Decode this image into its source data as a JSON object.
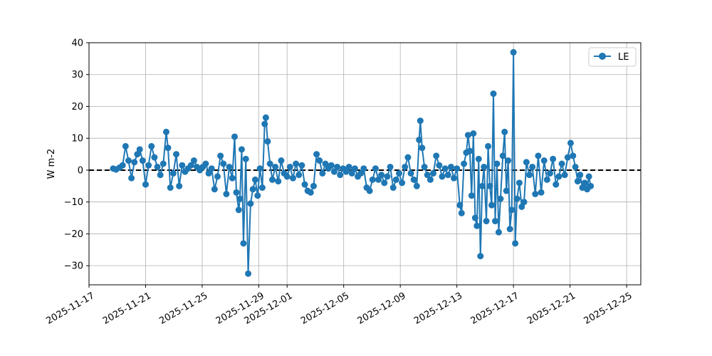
{
  "chart_data": {
    "type": "line",
    "title": "",
    "xlabel": "",
    "ylabel": "W m-2",
    "xlim": [
      "2025-11-17",
      "2025-12-26"
    ],
    "ylim": [
      -36,
      40
    ],
    "grid": true,
    "legend_location": "upper right",
    "x_ticks": [
      "2025-11-17",
      "2025-11-21",
      "2025-11-25",
      "2025-11-29",
      "2025-12-01",
      "2025-12-05",
      "2025-12-09",
      "2025-12-13",
      "2025-12-17",
      "2025-12-21",
      "2025-12-25"
    ],
    "y_ticks": [
      -30,
      -20,
      -10,
      0,
      10,
      20,
      30,
      40
    ],
    "reference_line": {
      "y": 0,
      "style": "dashed",
      "color": "#000000"
    },
    "series": [
      {
        "name": "LE",
        "color": "#1f77b4",
        "marker": "circle",
        "points": [
          [
            "2025-11-18T17:00",
            0.5
          ],
          [
            "2025-11-18T22:00",
            0.2
          ],
          [
            "2025-11-19T04:00",
            0.8
          ],
          [
            "2025-11-19T09:00",
            1.5
          ],
          [
            "2025-11-19T14:00",
            7.5
          ],
          [
            "2025-11-19T19:00",
            3.0
          ],
          [
            "2025-11-20T00:00",
            -2.5
          ],
          [
            "2025-11-20T05:00",
            2.5
          ],
          [
            "2025-11-20T10:00",
            5.0
          ],
          [
            "2025-11-20T14:00",
            6.5
          ],
          [
            "2025-11-20T19:00",
            3.0
          ],
          [
            "2025-11-21T00:00",
            -4.5
          ],
          [
            "2025-11-21T05:00",
            1.5
          ],
          [
            "2025-11-21T10:00",
            7.5
          ],
          [
            "2025-11-21T15:00",
            4.0
          ],
          [
            "2025-11-21T20:00",
            1.0
          ],
          [
            "2025-11-22T01:00",
            -1.5
          ],
          [
            "2025-11-22T06:00",
            2.0
          ],
          [
            "2025-11-22T11:00",
            12.0
          ],
          [
            "2025-11-22T14:00",
            7.0
          ],
          [
            "2025-11-22T18:00",
            -5.5
          ],
          [
            "2025-11-22T23:00",
            -1.0
          ],
          [
            "2025-11-23T04:00",
            5.0
          ],
          [
            "2025-11-23T09:00",
            -5.0
          ],
          [
            "2025-11-23T14:00",
            1.5
          ],
          [
            "2025-11-23T19:00",
            -0.5
          ],
          [
            "2025-11-24T00:00",
            0.5
          ],
          [
            "2025-11-24T05:00",
            1.5
          ],
          [
            "2025-11-24T10:00",
            3.0
          ],
          [
            "2025-11-24T15:00",
            1.0
          ],
          [
            "2025-11-24T20:00",
            0.0
          ],
          [
            "2025-11-25T01:00",
            1.0
          ],
          [
            "2025-11-25T06:00",
            2.0
          ],
          [
            "2025-11-25T11:00",
            -1.0
          ],
          [
            "2025-11-25T16:00",
            0.5
          ],
          [
            "2025-11-25T21:00",
            -6.0
          ],
          [
            "2025-11-26T02:00",
            -2.0
          ],
          [
            "2025-11-26T07:00",
            4.5
          ],
          [
            "2025-11-26T12:00",
            2.0
          ],
          [
            "2025-11-26T17:00",
            -7.5
          ],
          [
            "2025-11-26T22:00",
            1.0
          ],
          [
            "2025-11-27T03:00",
            -2.5
          ],
          [
            "2025-11-27T07:00",
            10.5
          ],
          [
            "2025-11-27T10:00",
            -7.0
          ],
          [
            "2025-11-27T14:00",
            -12.5
          ],
          [
            "2025-11-27T16:00",
            -9.0
          ],
          [
            "2025-11-27T19:00",
            6.5
          ],
          [
            "2025-11-27T22:00",
            -23.0
          ],
          [
            "2025-11-28T02:00",
            3.5
          ],
          [
            "2025-11-28T06:00",
            -32.5
          ],
          [
            "2025-11-28T10:00",
            -10.5
          ],
          [
            "2025-11-28T14:00",
            -6.0
          ],
          [
            "2025-11-28T18:00",
            -3.0
          ],
          [
            "2025-11-28T22:00",
            -8.0
          ],
          [
            "2025-11-29T02:00",
            0.5
          ],
          [
            "2025-11-29T06:00",
            -5.5
          ],
          [
            "2025-11-29T10:00",
            14.5
          ],
          [
            "2025-11-29T12:00",
            16.5
          ],
          [
            "2025-11-29T15:00",
            9.0
          ],
          [
            "2025-11-29T19:00",
            2.0
          ],
          [
            "2025-11-29T23:00",
            -3.0
          ],
          [
            "2025-11-30T04:00",
            1.0
          ],
          [
            "2025-11-30T09:00",
            -3.5
          ],
          [
            "2025-11-30T14:00",
            3.0
          ],
          [
            "2025-11-30T19:00",
            -1.0
          ],
          [
            "2025-12-01T00:00",
            -2.0
          ],
          [
            "2025-12-01T05:00",
            1.0
          ],
          [
            "2025-12-01T10:00",
            -2.5
          ],
          [
            "2025-12-01T15:00",
            2.0
          ],
          [
            "2025-12-01T20:00",
            -1.5
          ],
          [
            "2025-12-02T01:00",
            1.5
          ],
          [
            "2025-12-02T06:00",
            -4.5
          ],
          [
            "2025-12-02T11:00",
            -6.5
          ],
          [
            "2025-12-02T16:00",
            -7.0
          ],
          [
            "2025-12-02T21:00",
            -5.0
          ],
          [
            "2025-12-03T02:00",
            5.0
          ],
          [
            "2025-12-03T07:00",
            3.0
          ],
          [
            "2025-12-03T12:00",
            -1.0
          ],
          [
            "2025-12-03T17:00",
            2.0
          ],
          [
            "2025-12-03T22:00",
            0.5
          ],
          [
            "2025-12-04T03:00",
            1.5
          ],
          [
            "2025-12-04T08:00",
            -0.5
          ],
          [
            "2025-12-04T13:00",
            1.0
          ],
          [
            "2025-12-04T18:00",
            -1.5
          ],
          [
            "2025-12-04T23:00",
            0.5
          ],
          [
            "2025-12-05T04:00",
            -0.5
          ],
          [
            "2025-12-05T09:00",
            1.0
          ],
          [
            "2025-12-05T14:00",
            -1.0
          ],
          [
            "2025-12-05T19:00",
            0.5
          ],
          [
            "2025-12-06T00:00",
            -2.0
          ],
          [
            "2025-12-06T05:00",
            -1.0
          ],
          [
            "2025-12-06T10:00",
            0.5
          ],
          [
            "2025-12-06T15:00",
            -5.5
          ],
          [
            "2025-12-06T20:00",
            -6.5
          ],
          [
            "2025-12-07T01:00",
            -3.0
          ],
          [
            "2025-12-07T06:00",
            0.5
          ],
          [
            "2025-12-07T11:00",
            -3.0
          ],
          [
            "2025-12-07T16:00",
            -1.5
          ],
          [
            "2025-12-07T21:00",
            -4.0
          ],
          [
            "2025-12-08T02:00",
            -2.0
          ],
          [
            "2025-12-08T07:00",
            1.0
          ],
          [
            "2025-12-08T12:00",
            -5.5
          ],
          [
            "2025-12-08T17:00",
            -3.0
          ],
          [
            "2025-12-08T22:00",
            -1.0
          ],
          [
            "2025-12-09T03:00",
            -4.0
          ],
          [
            "2025-12-09T08:00",
            1.0
          ],
          [
            "2025-12-09T13:00",
            4.0
          ],
          [
            "2025-12-09T18:00",
            -1.0
          ],
          [
            "2025-12-09T23:00",
            -3.0
          ],
          [
            "2025-12-10T04:00",
            -5.0
          ],
          [
            "2025-12-10T08:00",
            9.5
          ],
          [
            "2025-12-10T10:00",
            15.5
          ],
          [
            "2025-12-10T13:00",
            7.0
          ],
          [
            "2025-12-10T17:00",
            1.0
          ],
          [
            "2025-12-10T22:00",
            -1.5
          ],
          [
            "2025-12-11T03:00",
            -3.0
          ],
          [
            "2025-12-11T08:00",
            -1.0
          ],
          [
            "2025-12-11T13:00",
            4.5
          ],
          [
            "2025-12-11T18:00",
            1.5
          ],
          [
            "2025-12-11T23:00",
            -2.0
          ],
          [
            "2025-12-12T04:00",
            0.5
          ],
          [
            "2025-12-12T09:00",
            -1.5
          ],
          [
            "2025-12-12T14:00",
            1.0
          ],
          [
            "2025-12-12T19:00",
            -2.5
          ],
          [
            "2025-12-13T00:00",
            0.5
          ],
          [
            "2025-12-13T05:00",
            -11.0
          ],
          [
            "2025-12-13T08:00",
            -13.5
          ],
          [
            "2025-12-13T12:00",
            2.0
          ],
          [
            "2025-12-13T16:00",
            5.5
          ],
          [
            "2025-12-13T19:00",
            11.0
          ],
          [
            "2025-12-13T22:00",
            6.0
          ],
          [
            "2025-12-14T01:00",
            -8.0
          ],
          [
            "2025-12-14T04:00",
            11.5
          ],
          [
            "2025-12-14T07:00",
            -15.0
          ],
          [
            "2025-12-14T10:00",
            -17.5
          ],
          [
            "2025-12-14T13:00",
            3.5
          ],
          [
            "2025-12-14T16:00",
            -27.0
          ],
          [
            "2025-12-14T19:00",
            -5.0
          ],
          [
            "2025-12-14T22:00",
            1.0
          ],
          [
            "2025-12-15T02:00",
            -16.0
          ],
          [
            "2025-12-15T05:00",
            7.5
          ],
          [
            "2025-12-15T08:00",
            -5.0
          ],
          [
            "2025-12-15T11:00",
            -11.0
          ],
          [
            "2025-12-15T14:00",
            24.0
          ],
          [
            "2025-12-15T17:00",
            -16.0
          ],
          [
            "2025-12-15T20:00",
            2.0
          ],
          [
            "2025-12-15T23:00",
            -19.5
          ],
          [
            "2025-12-16T02:00",
            -9.0
          ],
          [
            "2025-12-16T06:00",
            4.5
          ],
          [
            "2025-12-16T09:00",
            12.0
          ],
          [
            "2025-12-16T12:00",
            -6.5
          ],
          [
            "2025-12-16T15:00",
            3.0
          ],
          [
            "2025-12-16T18:00",
            -18.5
          ],
          [
            "2025-12-16T21:00",
            -12.5
          ],
          [
            "2025-12-17T00:00",
            37.0
          ],
          [
            "2025-12-17T03:00",
            -23.0
          ],
          [
            "2025-12-17T06:00",
            -9.0
          ],
          [
            "2025-12-17T10:00",
            -4.0
          ],
          [
            "2025-12-17T14:00",
            -11.5
          ],
          [
            "2025-12-17T18:00",
            -10.0
          ],
          [
            "2025-12-17T22:00",
            2.5
          ],
          [
            "2025-12-18T03:00",
            -1.5
          ],
          [
            "2025-12-18T08:00",
            1.0
          ],
          [
            "2025-12-18T13:00",
            -7.5
          ],
          [
            "2025-12-18T18:00",
            4.5
          ],
          [
            "2025-12-18T23:00",
            -7.0
          ],
          [
            "2025-12-19T04:00",
            3.0
          ],
          [
            "2025-12-19T09:00",
            -3.0
          ],
          [
            "2025-12-19T14:00",
            -1.0
          ],
          [
            "2025-12-19T19:00",
            3.5
          ],
          [
            "2025-12-20T00:00",
            -4.5
          ],
          [
            "2025-12-20T05:00",
            -2.0
          ],
          [
            "2025-12-20T10:00",
            2.0
          ],
          [
            "2025-12-20T15:00",
            -1.5
          ],
          [
            "2025-12-20T20:00",
            4.0
          ],
          [
            "2025-12-21T01:00",
            8.5
          ],
          [
            "2025-12-21T05:00",
            4.5
          ],
          [
            "2025-12-21T09:00",
            1.0
          ],
          [
            "2025-12-21T13:00",
            -3.5
          ],
          [
            "2025-12-21T17:00",
            -1.5
          ],
          [
            "2025-12-21T21:00",
            -5.5
          ],
          [
            "2025-12-22T01:00",
            -4.0
          ],
          [
            "2025-12-22T05:00",
            -6.0
          ],
          [
            "2025-12-22T08:00",
            -2.0
          ],
          [
            "2025-12-22T11:00",
            -5.0
          ]
        ]
      }
    ]
  }
}
